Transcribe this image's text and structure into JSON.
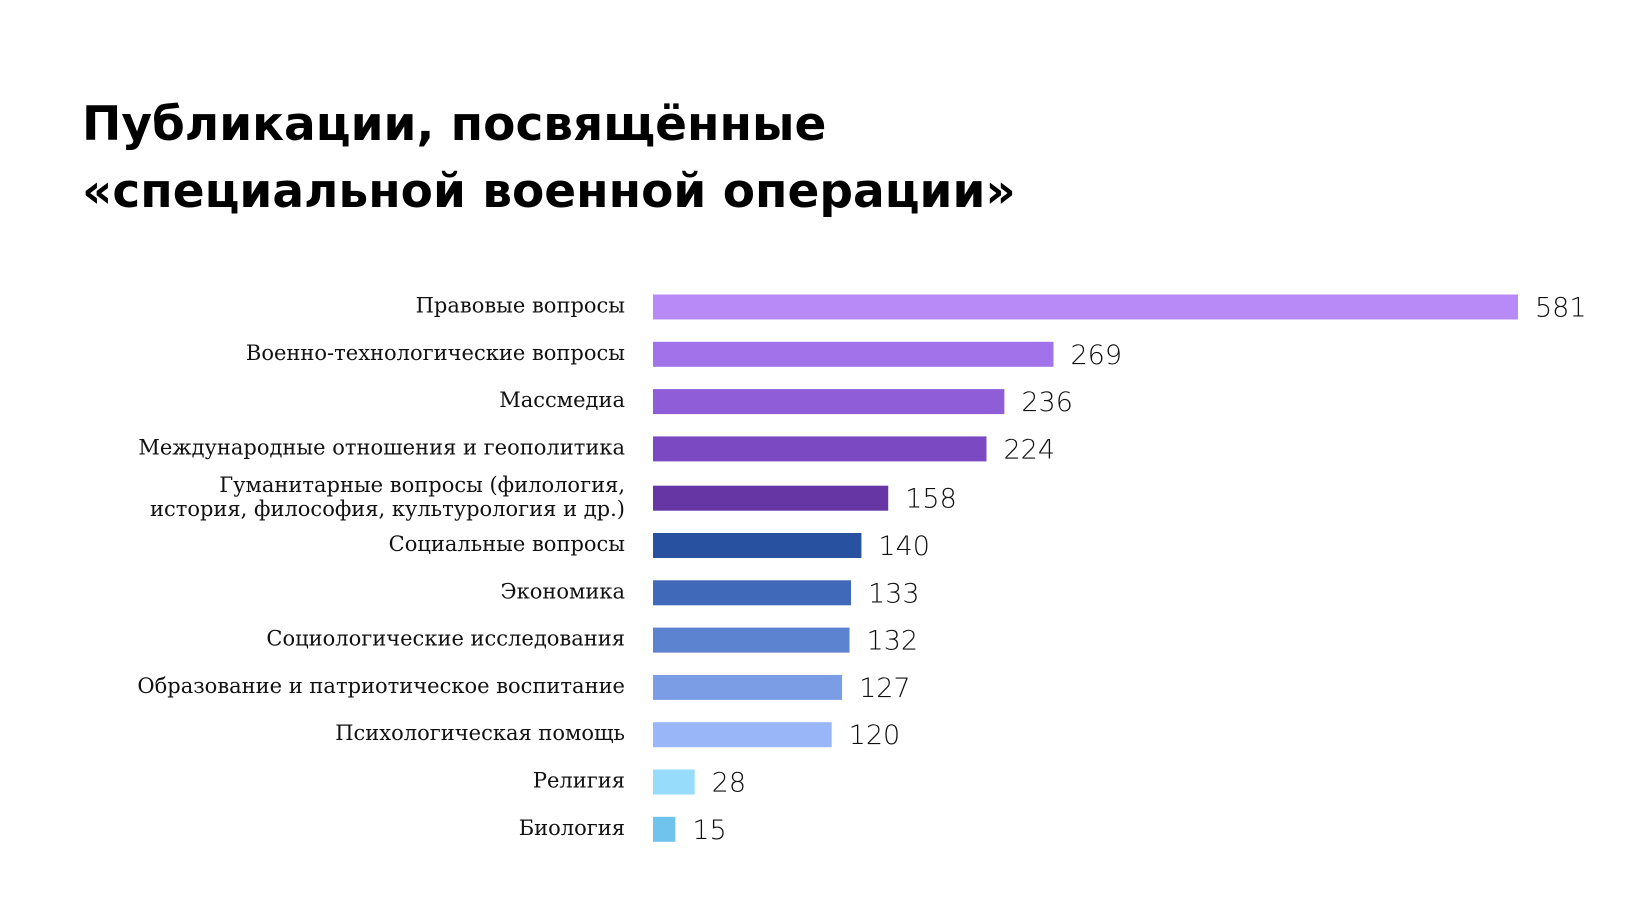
{
  "chart_data": {
    "type": "bar",
    "orientation": "horizontal",
    "title": [
      "Публикации, посвящённые",
      "«специальной военной операции»"
    ],
    "categories": [
      "Правовые вопросы",
      "Военно-технологические вопросы",
      "Массмедиа",
      "Международные отношения и геополитика",
      "Гуманитарные вопросы (филология,\nистория, философия, культурология и др.)",
      "Социальные вопросы",
      "Экономика",
      "Социологические исследования",
      "Образование и патриотическое воспитание",
      "Психологическая помощь",
      "Религия",
      "Биология"
    ],
    "values": [
      581,
      269,
      236,
      224,
      158,
      140,
      133,
      132,
      127,
      120,
      28,
      15
    ],
    "colors": [
      "#b88af8",
      "#a172e9",
      "#8e5dd7",
      "#7b49c1",
      "#6636a4",
      "#28519f",
      "#4169b9",
      "#5c83d0",
      "#7b9de6",
      "#99b6f8",
      "#97dcfa",
      "#70c3ec"
    ]
  }
}
